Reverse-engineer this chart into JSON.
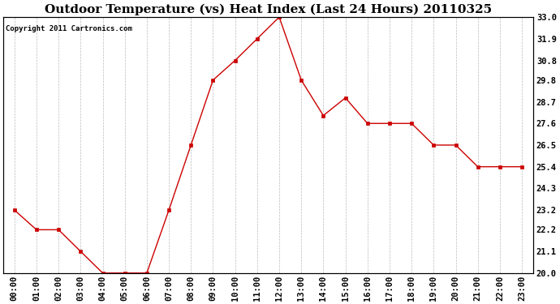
{
  "title": "Outdoor Temperature (vs) Heat Index (Last 24 Hours) 20110325",
  "copyright_text": "Copyright 2011 Cartronics.com",
  "x_labels": [
    "00:00",
    "01:00",
    "02:00",
    "03:00",
    "04:00",
    "05:00",
    "06:00",
    "07:00",
    "08:00",
    "09:00",
    "10:00",
    "11:00",
    "12:00",
    "13:00",
    "14:00",
    "15:00",
    "16:00",
    "17:00",
    "18:00",
    "19:00",
    "20:00",
    "21:00",
    "22:00",
    "23:00"
  ],
  "y_values": [
    23.2,
    22.2,
    22.2,
    21.1,
    20.0,
    20.0,
    20.0,
    23.2,
    26.5,
    29.8,
    30.8,
    31.9,
    33.0,
    29.8,
    28.0,
    28.9,
    27.6,
    27.6,
    27.6,
    26.5,
    26.5,
    25.4,
    25.4,
    25.4
  ],
  "ylim": [
    20.0,
    33.0
  ],
  "y_ticks": [
    20.0,
    21.1,
    22.2,
    23.2,
    24.3,
    25.4,
    26.5,
    27.6,
    28.7,
    29.8,
    30.8,
    31.9,
    33.0
  ],
  "line_color": "#cc0000",
  "marker": "s",
  "marker_size": 2.5,
  "background_color": "#ffffff",
  "grid_color": "#bbbbbb",
  "title_fontsize": 11,
  "copyright_fontsize": 6.5,
  "tick_fontsize": 7.5,
  "figwidth": 6.9,
  "figheight": 3.75,
  "dpi": 100
}
